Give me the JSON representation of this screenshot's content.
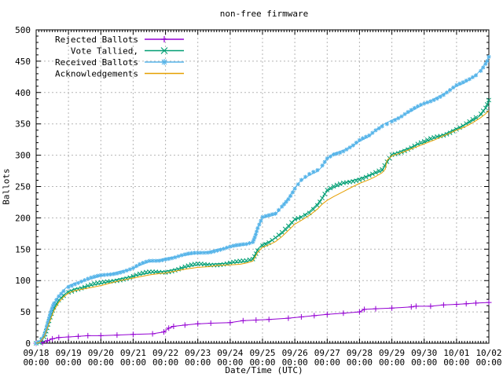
{
  "chart_data": {
    "type": "line",
    "title": "non-free firmware",
    "xlabel": "Date/Time (UTC)",
    "ylabel": "Ballots",
    "ylim": [
      0,
      500
    ],
    "xlim_days": [
      0,
      14
    ],
    "grid": "dashed",
    "legend_position": "top-left-inside",
    "colors": {
      "rejected": "#9400D3",
      "tallied": "#009E73",
      "received": "#56B4E9",
      "acknowledgements": "#E69F00",
      "grid": "#b5b5b5",
      "border": "#000000",
      "background": "#ffffff"
    },
    "y_ticks": [
      0,
      50,
      100,
      150,
      200,
      250,
      300,
      350,
      400,
      450,
      500
    ],
    "x_ticks": [
      {
        "date": "09/18",
        "time": "00:00"
      },
      {
        "date": "09/19",
        "time": "00:00"
      },
      {
        "date": "09/20",
        "time": "00:00"
      },
      {
        "date": "09/21",
        "time": "00:00"
      },
      {
        "date": "09/22",
        "time": "00:00"
      },
      {
        "date": "09/23",
        "time": "00:00"
      },
      {
        "date": "09/24",
        "time": "00:00"
      },
      {
        "date": "09/25",
        "time": "00:00"
      },
      {
        "date": "09/26",
        "time": "00:00"
      },
      {
        "date": "09/27",
        "time": "00:00"
      },
      {
        "date": "09/28",
        "time": "00:00"
      },
      {
        "date": "09/29",
        "time": "00:00"
      },
      {
        "date": "09/30",
        "time": "00:00"
      },
      {
        "date": "10/01",
        "time": "00:00"
      },
      {
        "date": "10/02",
        "time": "00:00"
      }
    ],
    "series": [
      {
        "name": "Rejected Ballots",
        "key": "rejected",
        "color": "#9400D3",
        "marker": "plus",
        "dense_markers": false,
        "points": [
          [
            0,
            0
          ],
          [
            0.2,
            1
          ],
          [
            0.35,
            4
          ],
          [
            0.5,
            7
          ],
          [
            0.7,
            9
          ],
          [
            1,
            10
          ],
          [
            1.3,
            11
          ],
          [
            1.6,
            12
          ],
          [
            2,
            12
          ],
          [
            2.5,
            13
          ],
          [
            3,
            14
          ],
          [
            3.6,
            15
          ],
          [
            3.95,
            18
          ],
          [
            4.1,
            24
          ],
          [
            4.25,
            27
          ],
          [
            4.6,
            29
          ],
          [
            5,
            31
          ],
          [
            5.4,
            32
          ],
          [
            6,
            33
          ],
          [
            6.4,
            36
          ],
          [
            6.8,
            37
          ],
          [
            7.2,
            38
          ],
          [
            7.8,
            40
          ],
          [
            8.2,
            42
          ],
          [
            8.6,
            44
          ],
          [
            9,
            46
          ],
          [
            9.5,
            48
          ],
          [
            10,
            50
          ],
          [
            10.15,
            54
          ],
          [
            10.5,
            55
          ],
          [
            11,
            56
          ],
          [
            11.6,
            58
          ],
          [
            11.75,
            59
          ],
          [
            12.2,
            59
          ],
          [
            12.6,
            61
          ],
          [
            13,
            62
          ],
          [
            13.3,
            63
          ],
          [
            13.6,
            64
          ],
          [
            14,
            65
          ]
        ]
      },
      {
        "name": "Vote Tallied,",
        "key": "tallied",
        "color": "#009E73",
        "marker": "cross",
        "dense_markers": true,
        "points": [
          [
            0,
            0
          ],
          [
            0.1,
            2
          ],
          [
            0.25,
            12
          ],
          [
            0.4,
            35
          ],
          [
            0.55,
            55
          ],
          [
            0.7,
            68
          ],
          [
            0.85,
            77
          ],
          [
            1,
            83
          ],
          [
            1.2,
            87
          ],
          [
            1.5,
            90
          ],
          [
            1.8,
            93
          ],
          [
            2,
            95
          ],
          [
            2.3,
            99
          ],
          [
            2.6,
            103
          ],
          [
            3,
            107
          ],
          [
            3.2,
            109
          ],
          [
            3.5,
            112
          ],
          [
            3.8,
            114
          ],
          [
            4,
            115
          ],
          [
            4.3,
            118
          ],
          [
            4.6,
            121
          ],
          [
            5,
            125
          ],
          [
            5.3,
            126
          ],
          [
            5.6,
            127
          ],
          [
            6,
            128
          ],
          [
            6.3,
            129
          ],
          [
            6.5,
            130
          ],
          [
            6.7,
            134
          ],
          [
            6.85,
            150
          ],
          [
            7,
            158
          ],
          [
            7.2,
            162
          ],
          [
            7.4,
            168
          ],
          [
            7.6,
            175
          ],
          [
            7.8,
            185
          ],
          [
            8,
            197
          ],
          [
            8.2,
            202
          ],
          [
            8.45,
            210
          ],
          [
            8.7,
            222
          ],
          [
            8.85,
            232
          ],
          [
            9,
            243
          ],
          [
            9.2,
            248
          ],
          [
            9.5,
            255
          ],
          [
            9.8,
            260
          ],
          [
            10,
            263
          ],
          [
            10.3,
            268
          ],
          [
            10.5,
            271
          ],
          [
            10.7,
            275
          ],
          [
            10.85,
            288
          ],
          [
            11,
            301
          ],
          [
            11.3,
            307
          ],
          [
            11.6,
            313
          ],
          [
            11.8,
            317
          ],
          [
            12,
            320
          ],
          [
            12.3,
            327
          ],
          [
            12.6,
            333
          ],
          [
            13,
            343
          ],
          [
            13.2,
            347
          ],
          [
            13.4,
            352
          ],
          [
            13.6,
            358
          ],
          [
            13.75,
            364
          ],
          [
            13.9,
            375
          ],
          [
            14,
            388
          ]
        ]
      },
      {
        "name": "Received Ballots",
        "key": "received",
        "color": "#56B4E9",
        "marker": "asterisk",
        "dense_markers": true,
        "points": [
          [
            0,
            0
          ],
          [
            0.1,
            3
          ],
          [
            0.25,
            15
          ],
          [
            0.4,
            40
          ],
          [
            0.55,
            62
          ],
          [
            0.7,
            75
          ],
          [
            0.85,
            85
          ],
          [
            1,
            92
          ],
          [
            1.2,
            96
          ],
          [
            1.5,
            100
          ],
          [
            1.8,
            104
          ],
          [
            2,
            107
          ],
          [
            2.3,
            111
          ],
          [
            2.6,
            115
          ],
          [
            3,
            119
          ],
          [
            3.2,
            124
          ],
          [
            3.5,
            130
          ],
          [
            3.8,
            133
          ],
          [
            4,
            136
          ],
          [
            4.3,
            138
          ],
          [
            4.6,
            140
          ],
          [
            5,
            143
          ],
          [
            5.3,
            146
          ],
          [
            5.6,
            150
          ],
          [
            6,
            153
          ],
          [
            6.3,
            155
          ],
          [
            6.5,
            157
          ],
          [
            6.7,
            162
          ],
          [
            6.85,
            185
          ],
          [
            7,
            200
          ],
          [
            7.2,
            202
          ],
          [
            7.4,
            205
          ],
          [
            7.6,
            218
          ],
          [
            7.8,
            232
          ],
          [
            8,
            248
          ],
          [
            8.2,
            260
          ],
          [
            8.45,
            268
          ],
          [
            8.7,
            274
          ],
          [
            8.85,
            282
          ],
          [
            9,
            295
          ],
          [
            9.2,
            303
          ],
          [
            9.5,
            308
          ],
          [
            9.8,
            315
          ],
          [
            10,
            322
          ],
          [
            10.3,
            330
          ],
          [
            10.5,
            340
          ],
          [
            10.7,
            348
          ],
          [
            10.85,
            352
          ],
          [
            11,
            356
          ],
          [
            11.3,
            362
          ],
          [
            11.6,
            370
          ],
          [
            11.8,
            376
          ],
          [
            12,
            382
          ],
          [
            12.3,
            390
          ],
          [
            12.6,
            398
          ],
          [
            13,
            410
          ],
          [
            13.2,
            414
          ],
          [
            13.4,
            420
          ],
          [
            13.6,
            428
          ],
          [
            13.75,
            436
          ],
          [
            13.9,
            448
          ],
          [
            14,
            457
          ]
        ]
      },
      {
        "name": "Acknowledgements",
        "key": "acknowledgements",
        "color": "#E69F00",
        "marker": "none",
        "dense_markers": false,
        "points": [
          [
            0,
            0
          ],
          [
            0.1,
            1
          ],
          [
            0.25,
            10
          ],
          [
            0.4,
            32
          ],
          [
            0.55,
            52
          ],
          [
            0.7,
            65
          ],
          [
            0.85,
            74
          ],
          [
            1,
            80
          ],
          [
            1.2,
            84
          ],
          [
            1.5,
            87
          ],
          [
            1.8,
            90
          ],
          [
            2,
            92
          ],
          [
            2.3,
            96
          ],
          [
            2.6,
            100
          ],
          [
            3,
            104
          ],
          [
            3.2,
            106
          ],
          [
            3.5,
            109
          ],
          [
            3.8,
            111
          ],
          [
            4,
            112
          ],
          [
            4.3,
            115
          ],
          [
            4.6,
            118
          ],
          [
            5,
            121
          ],
          [
            5.3,
            122
          ],
          [
            5.6,
            124
          ],
          [
            6,
            125
          ],
          [
            6.3,
            126
          ],
          [
            6.5,
            128
          ],
          [
            6.7,
            131
          ],
          [
            6.85,
            145
          ],
          [
            7,
            153
          ],
          [
            7.2,
            157
          ],
          [
            7.4,
            162
          ],
          [
            7.6,
            170
          ],
          [
            7.8,
            180
          ],
          [
            8,
            190
          ],
          [
            8.2,
            196
          ],
          [
            8.45,
            204
          ],
          [
            8.7,
            214
          ],
          [
            8.85,
            222
          ],
          [
            9,
            228
          ],
          [
            9.2,
            234
          ],
          [
            9.5,
            242
          ],
          [
            9.8,
            250
          ],
          [
            10,
            255
          ],
          [
            10.3,
            261
          ],
          [
            10.5,
            266
          ],
          [
            10.7,
            272
          ],
          [
            10.8,
            278
          ],
          [
            10.85,
            292
          ],
          [
            11,
            299
          ],
          [
            11.3,
            304
          ],
          [
            11.6,
            310
          ],
          [
            12,
            318
          ],
          [
            12.3,
            324
          ],
          [
            12.6,
            331
          ],
          [
            13,
            340
          ],
          [
            13.2,
            344
          ],
          [
            13.4,
            349
          ],
          [
            13.6,
            355
          ],
          [
            13.75,
            360
          ],
          [
            13.9,
            366
          ],
          [
            14,
            371
          ]
        ]
      }
    ],
    "legend_order": [
      "rejected",
      "tallied",
      "received",
      "acknowledgements"
    ]
  }
}
